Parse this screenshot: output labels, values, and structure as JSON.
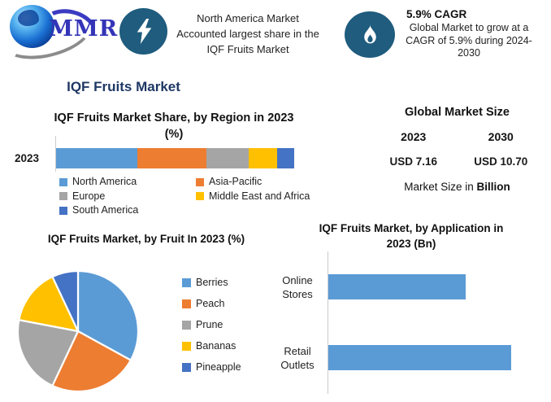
{
  "header": {
    "logo_text": "MMR",
    "logo_icon": "globe-icon",
    "highlight": {
      "icon": "lightning-icon",
      "lines": [
        "North America Market",
        "Accounted largest share in the",
        "IQF Fruits Market"
      ]
    },
    "cagr": {
      "icon": "flame-icon",
      "heading": "5.9% CAGR",
      "lines": [
        "Global Market to grow at a",
        "CAGR of 5.9% during 2024-",
        "2030"
      ]
    }
  },
  "main_title": "IQF Fruits Market",
  "region_chart": {
    "title_lines": [
      "IQF Fruits Market Share, by Region in 2023",
      "(%)"
    ]
  },
  "market_size": {
    "title": "Global Market Size",
    "years": [
      "2023",
      "2030"
    ],
    "values": [
      "USD 7.16",
      "USD 10.70"
    ],
    "caption_prefix": "Market Size in ",
    "caption_bold": "Billion",
    "value_color": "#1E87C9"
  },
  "fruit_chart": {
    "title": "IQF Fruits Market, by Fruit In 2023 (%)"
  },
  "application_chart": {
    "title_lines": [
      "IQF Fruits Market, by Application in",
      "2023 (Bn)"
    ]
  },
  "colors": {
    "icon_ellipse": "#1F5C7E",
    "navy_title": "#1F3864",
    "value_blue": "#1E87C9",
    "series_blue": "#5B9BD5",
    "series_orange": "#ED7D31",
    "series_gray": "#A5A5A5",
    "series_yellow": "#FFC000",
    "series_darkblue": "#4472C4"
  },
  "chart_data": [
    {
      "type": "bar",
      "subtype": "stacked-horizontal",
      "title": "IQF Fruits Market Share, by Region in 2023 (%)",
      "categories": [
        "2023"
      ],
      "series": [
        {
          "name": "North America",
          "values": [
            34
          ],
          "color": "#5B9BD5"
        },
        {
          "name": "Asia-Pacific",
          "values": [
            29
          ],
          "color": "#ED7D31"
        },
        {
          "name": "Europe",
          "values": [
            18
          ],
          "color": "#A5A5A5"
        },
        {
          "name": "Middle East and Africa",
          "values": [
            12
          ],
          "color": "#FFC000"
        },
        {
          "name": "South America",
          "values": [
            7
          ],
          "color": "#4472C4"
        }
      ],
      "unit": "%",
      "xlim": [
        0,
        100
      ],
      "grid": false,
      "legend_position": "bottom"
    },
    {
      "type": "pie",
      "title": "IQF Fruits Market, by Fruit In 2023 (%)",
      "labels": [
        "Berries",
        "Peach",
        "Prune",
        "Bananas",
        "Pineapple"
      ],
      "values": [
        33,
        24,
        21,
        15,
        7
      ],
      "colors": [
        "#5B9BD5",
        "#ED7D31",
        "#A5A5A5",
        "#FFC000",
        "#4472C4"
      ],
      "unit": "%",
      "start_angle_deg": 0,
      "legend_position": "right"
    },
    {
      "type": "bar",
      "subtype": "horizontal",
      "title": "IQF Fruits Market, by Application in 2023 (Bn)",
      "categories": [
        "Online Stores",
        "Retail Outlets"
      ],
      "values_relative": [
        0.75,
        1.0
      ],
      "axis_values_shown": false,
      "color": "#5B9BD5",
      "grid": false
    }
  ]
}
